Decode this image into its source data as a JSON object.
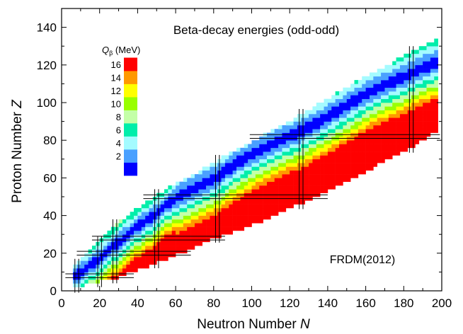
{
  "chart_data": {
    "type": "heatmap",
    "title": "Beta-decay energies (odd-odd)",
    "annotation": "FRDM(2012)",
    "xlabel": {
      "text": "Neutron Number ",
      "italic": "N"
    },
    "ylabel": {
      "text": "Proton Number ",
      "italic": "Z"
    },
    "xlim": [
      0,
      200
    ],
    "ylim": [
      0,
      150
    ],
    "x_ticks": [
      0,
      20,
      40,
      60,
      80,
      100,
      120,
      140,
      160,
      180,
      200
    ],
    "y_ticks": [
      0,
      20,
      40,
      60,
      80,
      100,
      120,
      140
    ],
    "grid": false,
    "colorbar": {
      "label_symbol": "Q",
      "label_subscript": "β",
      "label_unit": " (MeV)",
      "placement": "top-left",
      "ticks": [
        2,
        4,
        6,
        8,
        10,
        12,
        14,
        16
      ],
      "bins": [
        {
          "min": 0,
          "max": 2,
          "color": "#0000ff"
        },
        {
          "min": 2,
          "max": 4,
          "color": "#4aa0ff"
        },
        {
          "min": 4,
          "max": 6,
          "color": "#a4fbff"
        },
        {
          "min": 6,
          "max": 8,
          "color": "#00eeaa"
        },
        {
          "min": 8,
          "max": 10,
          "color": "#c4ffa8"
        },
        {
          "min": 10,
          "max": 12,
          "color": "#99ff00"
        },
        {
          "min": 12,
          "max": 14,
          "color": "#ffff00"
        },
        {
          "min": 14,
          "max": 16,
          "color": "#ff9900"
        },
        {
          "min": 16,
          "max": 18,
          "color": "#ff0000"
        }
      ]
    },
    "magic_numbers_N": [
      8,
      20,
      28,
      50,
      82,
      126,
      184
    ],
    "magic_numbers_Z": [
      8,
      20,
      28,
      50,
      82
    ],
    "stability_valley": [
      [
        8,
        8
      ],
      [
        20,
        17
      ],
      [
        28,
        24
      ],
      [
        40,
        34
      ],
      [
        50,
        41
      ],
      [
        60,
        49
      ],
      [
        70,
        54
      ],
      [
        82,
        60
      ],
      [
        90,
        66
      ],
      [
        100,
        72
      ],
      [
        110,
        77
      ],
      [
        120,
        82
      ],
      [
        126,
        84
      ],
      [
        140,
        92
      ],
      [
        150,
        98
      ],
      [
        160,
        104
      ],
      [
        170,
        109
      ],
      [
        180,
        113
      ],
      [
        190,
        118
      ],
      [
        198,
        121
      ]
    ],
    "chart_extent": [
      [
        8,
        2,
        14
      ],
      [
        12,
        3,
        19
      ],
      [
        16,
        4,
        22
      ],
      [
        20,
        5,
        26
      ],
      [
        24,
        6,
        30
      ],
      [
        28,
        7,
        35
      ],
      [
        30,
        7,
        37
      ],
      [
        34,
        9,
        39
      ],
      [
        40,
        11,
        44
      ],
      [
        50,
        15,
        51
      ],
      [
        60,
        19,
        57
      ],
      [
        70,
        23,
        62
      ],
      [
        80,
        28,
        68
      ],
      [
        90,
        31,
        74
      ],
      [
        100,
        35,
        79
      ],
      [
        110,
        39,
        85
      ],
      [
        120,
        44,
        90
      ],
      [
        130,
        48,
        96
      ],
      [
        140,
        53,
        102
      ],
      [
        150,
        58,
        108
      ],
      [
        160,
        63,
        114
      ],
      [
        170,
        69,
        119
      ],
      [
        180,
        74,
        125
      ],
      [
        190,
        80,
        130
      ],
      [
        198,
        85,
        134
      ]
    ],
    "q_gradient": "Q_beta is about 0-2 MeV along the stability valley and rises with distance from it: toward the neutron-rich side (low Z) it climbs steeply to 16+ MeV; toward the proton-rich side (high Z) it climbs more slowly and reaches 16+ MeV only near the proton edge of the chart"
  }
}
